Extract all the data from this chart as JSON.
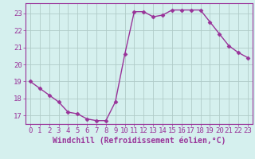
{
  "x": [
    0,
    1,
    2,
    3,
    4,
    5,
    6,
    7,
    8,
    9,
    10,
    11,
    12,
    13,
    14,
    15,
    16,
    17,
    18,
    19,
    20,
    21,
    22,
    23
  ],
  "y": [
    19.0,
    18.6,
    18.2,
    17.8,
    17.2,
    17.1,
    16.8,
    16.7,
    16.7,
    17.8,
    20.6,
    23.1,
    23.1,
    22.8,
    22.9,
    23.2,
    23.2,
    23.2,
    23.2,
    22.5,
    21.8,
    21.1,
    20.7,
    20.4
  ],
  "line_color": "#993399",
  "marker": "D",
  "markersize": 2.5,
  "linewidth": 1.0,
  "bg_color": "#d5f0ee",
  "grid_color": "#b0ccc8",
  "xlabel": "Windchill (Refroidissement éolien,°C)",
  "xlabel_fontsize": 7,
  "ylabel_ticks": [
    17,
    18,
    19,
    20,
    21,
    22,
    23
  ],
  "xlim": [
    -0.5,
    23.5
  ],
  "ylim": [
    16.5,
    23.6
  ],
  "tick_fontsize": 6.5,
  "title": ""
}
